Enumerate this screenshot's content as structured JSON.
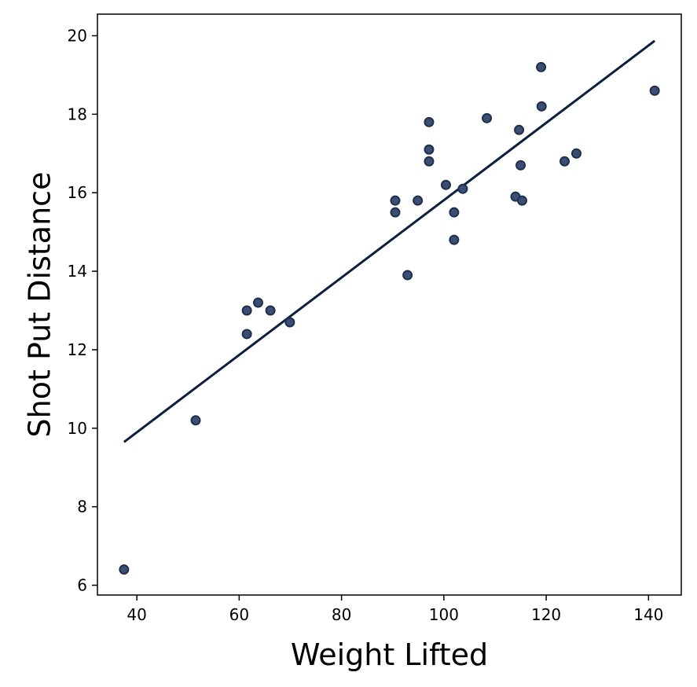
{
  "chart_data": {
    "type": "scatter",
    "title": "",
    "xlabel": "Weight Lifted",
    "ylabel": "Shot Put Distance",
    "xlim": [
      32.3,
      146.4
    ],
    "ylim": [
      5.75,
      20.55
    ],
    "xticks": [
      40,
      60,
      80,
      100,
      120,
      140
    ],
    "yticks": [
      6,
      8,
      10,
      12,
      14,
      16,
      18,
      20
    ],
    "grid": false,
    "point_color": "#3a4f73",
    "point_edge_color": "#1f2f4d",
    "line_color": "#0b1f3f",
    "series": [
      {
        "type": "scatter",
        "x": [
          37.5,
          51.5,
          61.5,
          61.5,
          63.7,
          66.1,
          69.9,
          90.5,
          90.5,
          92.9,
          94.9,
          97.1,
          97.1,
          97.1,
          100.4,
          102.0,
          102.0,
          103.7,
          108.4,
          114.0,
          114.7,
          115.0,
          115.3,
          119.0,
          119.1,
          123.6,
          125.9,
          141.2
        ],
        "y": [
          6.4,
          10.2,
          12.4,
          13.0,
          13.2,
          13.0,
          12.7,
          15.5,
          15.8,
          13.9,
          15.8,
          16.8,
          17.1,
          17.8,
          16.2,
          14.8,
          15.5,
          16.1,
          17.9,
          15.9,
          17.6,
          16.7,
          15.8,
          19.2,
          18.2,
          16.8,
          17.0,
          18.6
        ]
      },
      {
        "type": "line",
        "x": [
          37.5,
          141.2
        ],
        "y": [
          9.65,
          19.87
        ]
      }
    ]
  }
}
